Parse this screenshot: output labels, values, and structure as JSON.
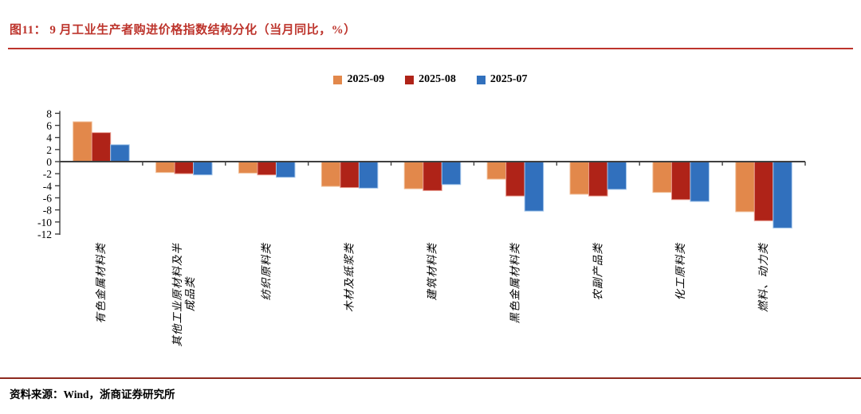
{
  "figure": {
    "title": "图11： 9 月工业生产者购进价格指数结构分化（当月同比，%）",
    "source_note": "资料来源：Wind，浙商证券研究所",
    "accent_color": "#BD342C",
    "rule_color": "#8E2A1F"
  },
  "chart_data": {
    "type": "bar",
    "title": "9月工业生产者购进价格指数结构分化（当月同比，%）",
    "categories": [
      "有色金属材料类",
      "其他工业原材料及半成品类",
      "纺织原料类",
      "木材及纸浆类",
      "建筑材料类",
      "黑色金属材料类",
      "农副产品类",
      "化工原料类",
      "燃料、动力类"
    ],
    "category_lines": [
      [
        "有色金属材料类"
      ],
      [
        "其他工业原材料及半",
        "成品类"
      ],
      [
        "纺织原料类"
      ],
      [
        "木材及纸浆类"
      ],
      [
        "建筑材料类"
      ],
      [
        "黑色金属材料类"
      ],
      [
        "农副产品类"
      ],
      [
        "化工原料类"
      ],
      [
        "燃料、动力类"
      ]
    ],
    "series": [
      {
        "name": "2025-09",
        "color": "#E2884B",
        "border": "#F0BE97",
        "values": [
          6.6,
          -1.8,
          -1.9,
          -4.1,
          -4.5,
          -2.9,
          -5.4,
          -5.1,
          -8.3
        ]
      },
      {
        "name": "2025-08",
        "color": "#AF2318",
        "border": "#E89A8D",
        "values": [
          4.8,
          -2.0,
          -2.2,
          -4.3,
          -4.8,
          -5.7,
          -5.7,
          -6.3,
          -9.8
        ]
      },
      {
        "name": "2025-07",
        "color": "#3170BD",
        "border": "#A3C5EA",
        "values": [
          2.8,
          -2.2,
          -2.6,
          -4.4,
          -3.8,
          -8.2,
          -4.6,
          -6.6,
          -11.0
        ]
      }
    ],
    "xlabel": "",
    "ylabel": "",
    "ylim": [
      -12,
      8
    ],
    "yticks": [
      8,
      6,
      4,
      2,
      0,
      -2,
      -4,
      -6,
      -8,
      -10,
      -12
    ],
    "grid": false,
    "legend_position": "top-center",
    "axis_color": "#3f3f3f"
  }
}
